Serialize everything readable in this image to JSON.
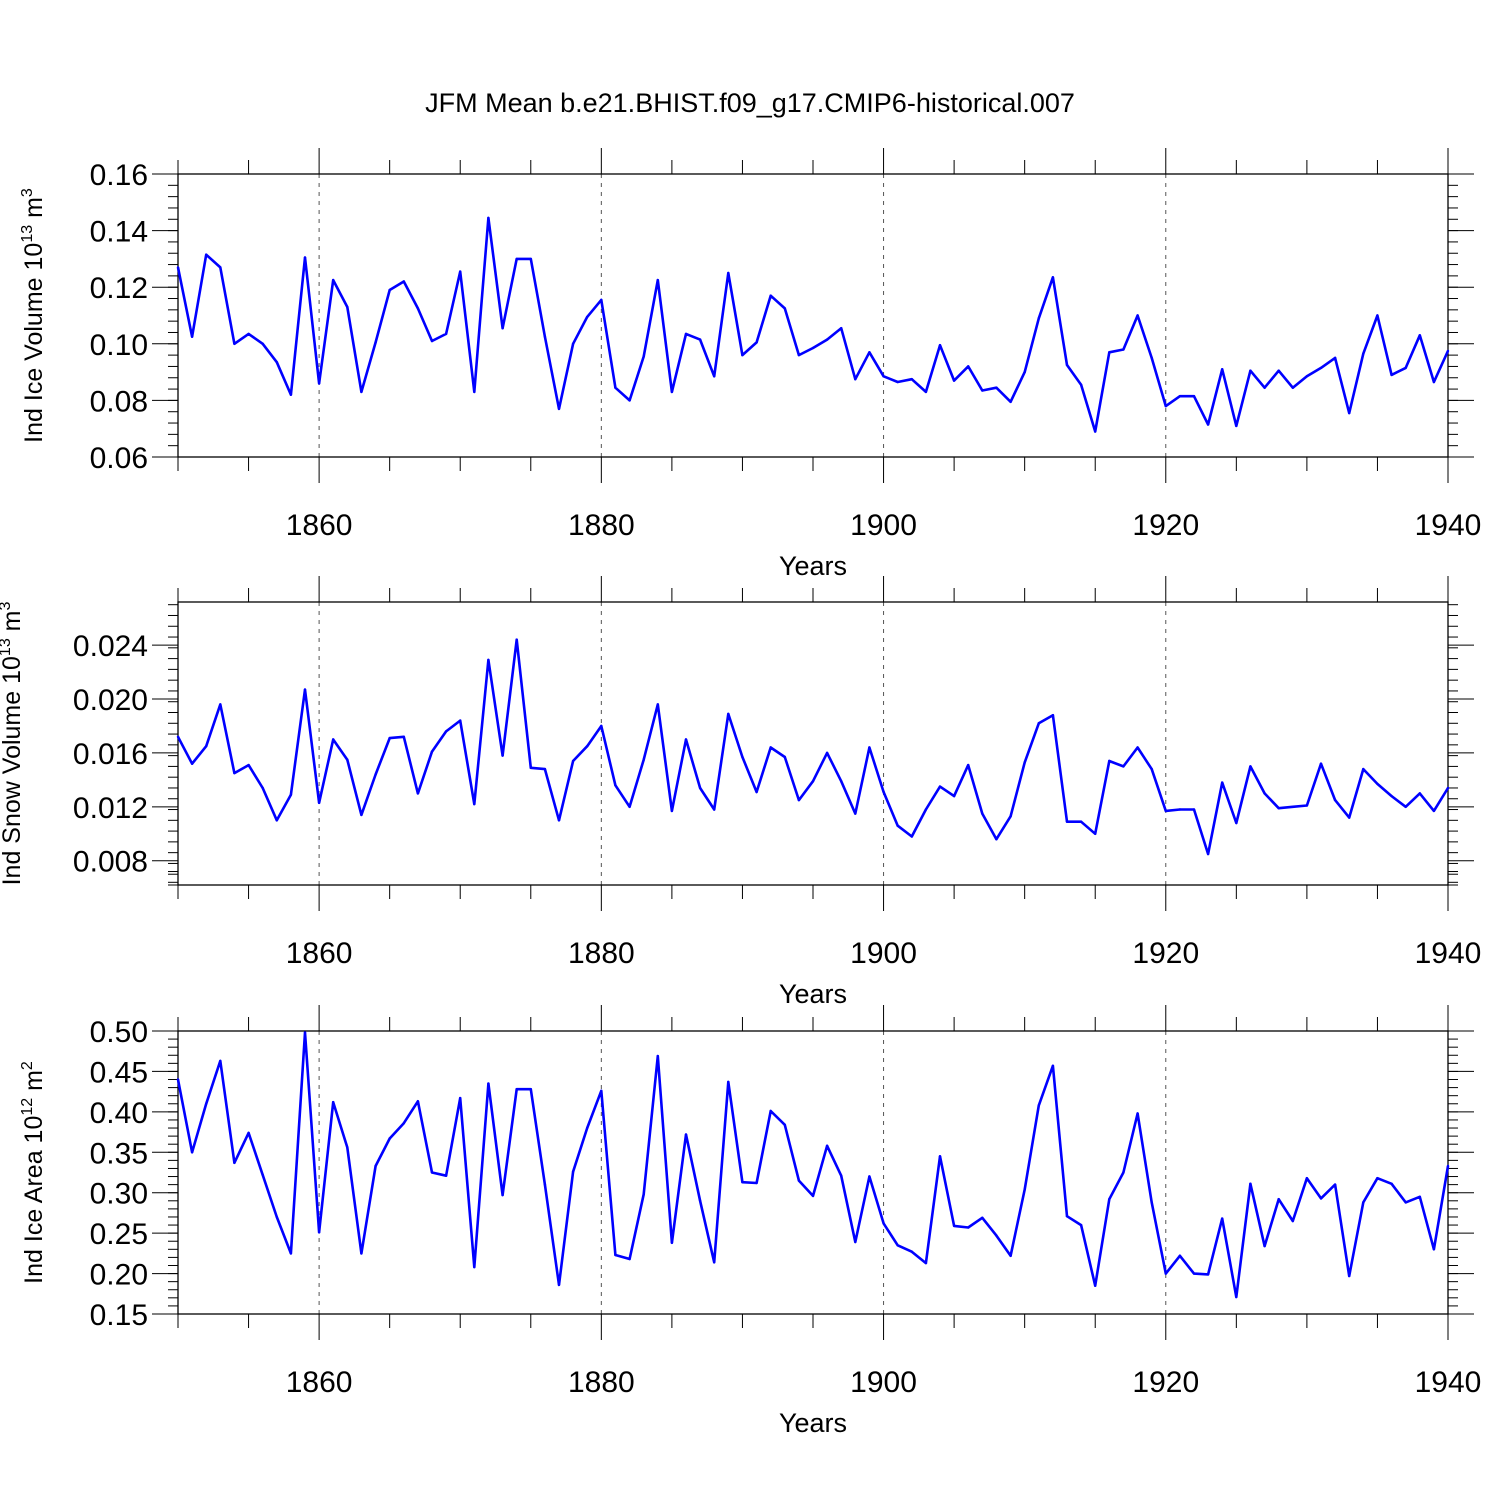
{
  "title": "JFM Mean b.e21.BHIST.f09_g17.CMIP6-historical.007",
  "line_color": "#0000ff",
  "chart_data": [
    {
      "type": "line",
      "ylabel_main": "Ind Ice Volume 10",
      "ylabel_exp": "13",
      "ylabel_unit": " m",
      "ylabel_unit_exp": "3",
      "xlabel": "Years",
      "xlim": [
        1850,
        1940
      ],
      "ylim": [
        0.06,
        0.16
      ],
      "xticks": [
        1860,
        1880,
        1900,
        1920,
        1940
      ],
      "xtick_labels": [
        "1860",
        "1880",
        "1900",
        "1920",
        "1940"
      ],
      "yticks": [
        0.06,
        0.08,
        0.1,
        0.12,
        0.14,
        0.16
      ],
      "ytick_labels": [
        "0.06",
        "0.08",
        "0.10",
        "0.12",
        "0.14",
        "0.16"
      ],
      "x_start": 1850,
      "values": [
        0.127,
        0.1025,
        0.1315,
        0.127,
        0.1,
        0.1035,
        0.1,
        0.0935,
        0.082,
        0.1305,
        0.086,
        0.1225,
        0.113,
        0.083,
        0.1005,
        0.119,
        0.122,
        0.1125,
        0.101,
        0.1035,
        0.1255,
        0.083,
        0.1445,
        0.1055,
        0.13,
        0.13,
        0.1025,
        0.077,
        0.1,
        0.1095,
        0.1155,
        0.0845,
        0.08,
        0.0955,
        0.1225,
        0.083,
        0.1035,
        0.1015,
        0.0885,
        0.125,
        0.096,
        0.1005,
        0.117,
        0.1125,
        0.096,
        0.0985,
        0.1015,
        0.1055,
        0.0875,
        0.097,
        0.0885,
        0.0865,
        0.0875,
        0.083,
        0.0995,
        0.087,
        0.092,
        0.0835,
        0.0845,
        0.0795,
        0.09,
        0.109,
        0.1235,
        0.0925,
        0.0855,
        0.069,
        0.097,
        0.098,
        0.11,
        0.095,
        0.078,
        0.0815,
        0.0815,
        0.0715,
        0.091,
        0.071,
        0.0905,
        0.0845,
        0.0905,
        0.0845,
        0.0885,
        0.0915,
        0.095,
        0.0755,
        0.0965,
        0.11,
        0.089,
        0.0915,
        0.103,
        0.0865,
        0.0975
      ]
    },
    {
      "type": "line",
      "ylabel_main": "Ind Snow Volume 10",
      "ylabel_exp": "13",
      "ylabel_unit": " m",
      "ylabel_unit_exp": "3",
      "xlabel": "Years",
      "xlim": [
        1850,
        1940
      ],
      "ylim": [
        0.0062,
        0.0272
      ],
      "xticks": [
        1860,
        1880,
        1900,
        1920,
        1940
      ],
      "xtick_labels": [
        "1860",
        "1880",
        "1900",
        "1920",
        "1940"
      ],
      "yticks": [
        0.008,
        0.012,
        0.016,
        0.02,
        0.024
      ],
      "ytick_labels": [
        "0.008",
        "0.012",
        "0.016",
        "0.020",
        "0.024"
      ],
      "x_start": 1850,
      "values": [
        0.0172,
        0.0152,
        0.0165,
        0.0196,
        0.0145,
        0.0151,
        0.0134,
        0.011,
        0.0129,
        0.0207,
        0.0123,
        0.017,
        0.0155,
        0.0114,
        0.0144,
        0.0171,
        0.0172,
        0.013,
        0.0161,
        0.0176,
        0.0184,
        0.0122,
        0.0229,
        0.0158,
        0.0244,
        0.0149,
        0.0148,
        0.011,
        0.0154,
        0.0165,
        0.018,
        0.0136,
        0.012,
        0.0155,
        0.0196,
        0.0117,
        0.017,
        0.0134,
        0.0118,
        0.0189,
        0.0157,
        0.0131,
        0.0164,
        0.0157,
        0.0125,
        0.0139,
        0.016,
        0.0139,
        0.0115,
        0.0164,
        0.0131,
        0.0106,
        0.0098,
        0.0118,
        0.0135,
        0.0128,
        0.0151,
        0.0115,
        0.0096,
        0.0113,
        0.0153,
        0.0182,
        0.0188,
        0.0109,
        0.0109,
        0.01,
        0.0154,
        0.015,
        0.0164,
        0.0148,
        0.0117,
        0.0118,
        0.0118,
        0.0085,
        0.0138,
        0.0108,
        0.015,
        0.013,
        0.0119,
        0.012,
        0.0121,
        0.0152,
        0.0125,
        0.0112,
        0.0148,
        0.0137,
        0.0128,
        0.012,
        0.013,
        0.0117,
        0.0134
      ]
    },
    {
      "type": "line",
      "ylabel_main": "Ind Ice Area 10",
      "ylabel_exp": "12",
      "ylabel_unit": " m",
      "ylabel_unit_exp": "2",
      "xlabel": "Years",
      "xlim": [
        1850,
        1940
      ],
      "ylim": [
        0.15,
        0.5
      ],
      "xticks": [
        1860,
        1880,
        1900,
        1920,
        1940
      ],
      "xtick_labels": [
        "1860",
        "1880",
        "1900",
        "1920",
        "1940"
      ],
      "yticks": [
        0.15,
        0.2,
        0.25,
        0.3,
        0.35,
        0.4,
        0.45,
        0.5
      ],
      "ytick_labels": [
        "0.15",
        "0.20",
        "0.25",
        "0.30",
        "0.35",
        "0.40",
        "0.45",
        "0.50"
      ],
      "x_start": 1850,
      "values": [
        0.44,
        0.35,
        0.41,
        0.463,
        0.337,
        0.374,
        0.322,
        0.27,
        0.225,
        0.498,
        0.251,
        0.412,
        0.356,
        0.225,
        0.333,
        0.367,
        0.386,
        0.413,
        0.325,
        0.321,
        0.417,
        0.208,
        0.435,
        0.297,
        0.428,
        0.428,
        0.31,
        0.186,
        0.326,
        0.38,
        0.426,
        0.223,
        0.218,
        0.298,
        0.469,
        0.238,
        0.372,
        0.29,
        0.214,
        0.437,
        0.313,
        0.312,
        0.401,
        0.384,
        0.315,
        0.296,
        0.358,
        0.321,
        0.239,
        0.32,
        0.262,
        0.235,
        0.227,
        0.213,
        0.345,
        0.259,
        0.257,
        0.269,
        0.247,
        0.222,
        0.304,
        0.408,
        0.457,
        0.271,
        0.26,
        0.185,
        0.292,
        0.325,
        0.398,
        0.288,
        0.2,
        0.222,
        0.2,
        0.199,
        0.268,
        0.171,
        0.311,
        0.234,
        0.292,
        0.265,
        0.318,
        0.293,
        0.31,
        0.197,
        0.288,
        0.318,
        0.311,
        0.288,
        0.295,
        0.23,
        0.333
      ]
    }
  ]
}
